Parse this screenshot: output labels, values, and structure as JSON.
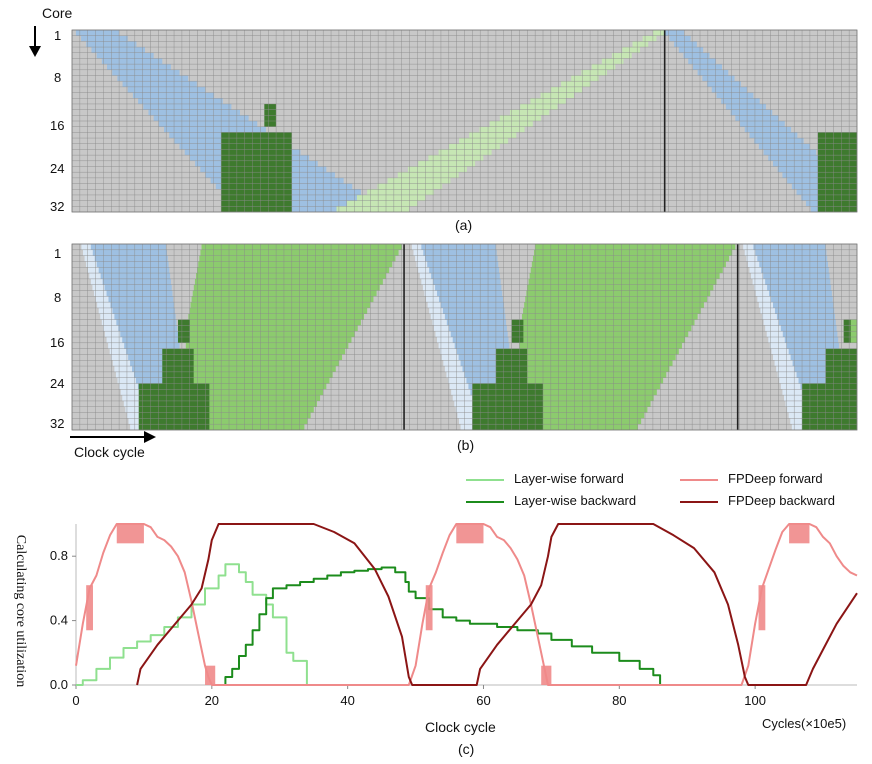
{
  "panel_a": {
    "core_axis_label": "Core",
    "core_ticks": [
      "1",
      "8",
      "16",
      "24",
      "32"
    ],
    "caption": "(a)"
  },
  "panel_b": {
    "core_ticks": [
      "1",
      "8",
      "16",
      "24",
      "32"
    ],
    "x_axis_label": "Clock cycle",
    "caption": "(b)"
  },
  "colors": {
    "grid_bg": "#c8c8c8",
    "grid_line": "#8a8a8a",
    "blue": "#9ec0e2",
    "light_blue": "#dbe8f5",
    "light_green": "#c6e6b4",
    "green": "#8ccb6e",
    "dark_green": "#3e7a2e",
    "layerwise_forward": "#8fe08f",
    "layerwise_backward": "#1c8c1c",
    "fpdeep_forward": "#ef8a8a",
    "fpdeep_backward": "#8b1515"
  },
  "chart_data": {
    "type": "line",
    "title": "",
    "xlabel": "Clock cycle",
    "x_unit_label": "Cycles(×10e5)",
    "ylabel": "Calculating core utilization",
    "xlim": [
      0,
      115
    ],
    "ylim": [
      0,
      1.0
    ],
    "xticks": [
      "0",
      "20",
      "40",
      "60",
      "80",
      "100"
    ],
    "yticks": [
      "0.0",
      "0.4",
      "0.8"
    ],
    "legend_position": "top-right",
    "caption": "(c)",
    "series": [
      {
        "name": "Layer-wise forward",
        "color": "#8fe08f",
        "points": [
          [
            0,
            0
          ],
          [
            1,
            0.03
          ],
          [
            3,
            0.1
          ],
          [
            5,
            0.17
          ],
          [
            7,
            0.23
          ],
          [
            9,
            0.27
          ],
          [
            11,
            0.31
          ],
          [
            13,
            0.36
          ],
          [
            15,
            0.42
          ],
          [
            17,
            0.5
          ],
          [
            19,
            0.6
          ],
          [
            21,
            0.68
          ],
          [
            22,
            0.75
          ],
          [
            24,
            0.7
          ],
          [
            25,
            0.64
          ],
          [
            26,
            0.56
          ],
          [
            28,
            0.5
          ],
          [
            29,
            0.42
          ],
          [
            31,
            0.2
          ],
          [
            32,
            0.15
          ],
          [
            34,
            0
          ]
        ]
      },
      {
        "name": "Layer-wise backward",
        "color": "#1c8c1c",
        "points": [
          [
            20,
            0
          ],
          [
            21.5,
            0
          ],
          [
            22,
            0.05
          ],
          [
            23,
            0.1
          ],
          [
            24,
            0.18
          ],
          [
            25,
            0.25
          ],
          [
            26,
            0.34
          ],
          [
            27,
            0.44
          ],
          [
            28,
            0.54
          ],
          [
            29,
            0.6
          ],
          [
            31,
            0.62
          ],
          [
            33,
            0.64
          ],
          [
            35,
            0.66
          ],
          [
            37,
            0.68
          ],
          [
            39,
            0.7
          ],
          [
            41,
            0.71
          ],
          [
            43,
            0.72
          ],
          [
            45,
            0.73
          ],
          [
            47,
            0.7
          ],
          [
            48.5,
            0.64
          ],
          [
            49,
            0.58
          ],
          [
            50,
            0.54
          ],
          [
            52,
            0.47
          ],
          [
            54,
            0.42
          ],
          [
            56,
            0.4
          ],
          [
            58,
            0.38
          ],
          [
            62,
            0.36
          ],
          [
            65,
            0.34
          ],
          [
            68,
            0.32
          ],
          [
            70,
            0.28
          ],
          [
            73,
            0.24
          ],
          [
            76,
            0.2
          ],
          [
            80,
            0.15
          ],
          [
            83,
            0.1
          ],
          [
            85,
            0.06
          ],
          [
            86,
            0
          ]
        ]
      },
      {
        "name": "FPDeep forward",
        "color": "#ef8a8a",
        "points": [
          [
            0,
            0.12
          ],
          [
            1,
            0.38
          ],
          [
            2,
            0.6
          ],
          [
            3,
            0.68
          ],
          [
            4,
            0.82
          ],
          [
            5,
            0.93
          ],
          [
            6,
            1.0
          ],
          [
            10,
            1.0
          ],
          [
            11,
            0.98
          ],
          [
            12,
            0.92
          ],
          [
            13,
            0.9
          ],
          [
            14,
            0.86
          ],
          [
            15,
            0.8
          ],
          [
            16,
            0.7
          ],
          [
            17,
            0.52
          ],
          [
            18,
            0.32
          ],
          [
            19,
            0.12
          ],
          [
            19.5,
            0.05
          ],
          [
            20,
            0
          ],
          [
            49,
            0
          ],
          [
            50,
            0.12
          ],
          [
            51,
            0.38
          ],
          [
            52,
            0.6
          ],
          [
            53,
            0.7
          ],
          [
            54,
            0.82
          ],
          [
            55,
            0.93
          ],
          [
            56,
            1.0
          ],
          [
            60,
            1.0
          ],
          [
            61,
            0.98
          ],
          [
            62,
            0.92
          ],
          [
            63,
            0.9
          ],
          [
            64,
            0.85
          ],
          [
            65,
            0.78
          ],
          [
            66,
            0.68
          ],
          [
            67,
            0.5
          ],
          [
            68,
            0.3
          ],
          [
            69,
            0.1
          ],
          [
            69.5,
            0
          ],
          [
            98,
            0
          ],
          [
            99,
            0.12
          ],
          [
            100,
            0.38
          ],
          [
            101,
            0.6
          ],
          [
            102,
            0.72
          ],
          [
            103,
            0.84
          ],
          [
            104,
            0.95
          ],
          [
            105,
            1.0
          ],
          [
            108,
            1.0
          ],
          [
            109,
            0.98
          ],
          [
            110,
            0.92
          ],
          [
            111,
            0.88
          ],
          [
            112,
            0.8
          ],
          [
            113,
            0.74
          ],
          [
            114,
            0.7
          ],
          [
            115,
            0.68
          ]
        ]
      },
      {
        "name": "FPDeep backward",
        "color": "#8b1515",
        "points": [
          [
            9,
            0
          ],
          [
            9.5,
            0.1
          ],
          [
            12,
            0.25
          ],
          [
            15,
            0.4
          ],
          [
            17,
            0.5
          ],
          [
            18.5,
            0.6
          ],
          [
            19.5,
            0.78
          ],
          [
            20,
            0.9
          ],
          [
            21,
            1.0
          ],
          [
            35,
            1.0
          ],
          [
            38,
            0.95
          ],
          [
            41,
            0.88
          ],
          [
            44,
            0.72
          ],
          [
            46,
            0.55
          ],
          [
            48,
            0.3
          ],
          [
            49,
            0.05
          ],
          [
            49.5,
            0
          ],
          [
            59,
            0
          ],
          [
            59.5,
            0.1
          ],
          [
            62,
            0.25
          ],
          [
            65,
            0.4
          ],
          [
            67,
            0.5
          ],
          [
            68.5,
            0.62
          ],
          [
            69.5,
            0.8
          ],
          [
            70,
            0.92
          ],
          [
            71,
            1.0
          ],
          [
            85,
            1.0
          ],
          [
            88,
            0.93
          ],
          [
            91,
            0.85
          ],
          [
            94,
            0.7
          ],
          [
            96,
            0.5
          ],
          [
            97.5,
            0.25
          ],
          [
            98.5,
            0.05
          ],
          [
            99,
            0
          ],
          [
            107.5,
            0
          ],
          [
            108.5,
            0.1
          ],
          [
            110,
            0.22
          ],
          [
            112,
            0.38
          ],
          [
            115,
            0.57
          ]
        ]
      }
    ]
  }
}
